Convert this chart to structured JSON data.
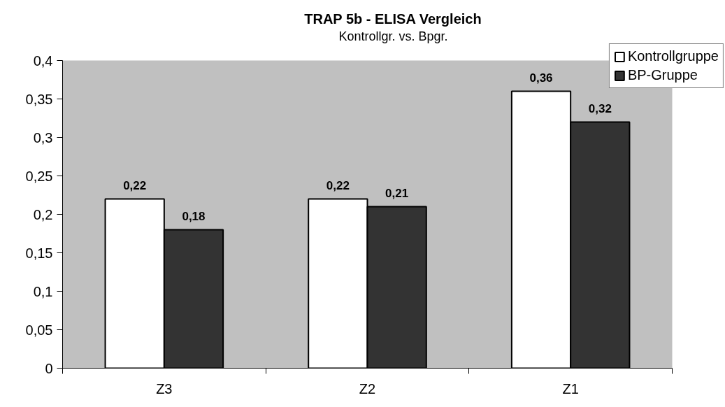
{
  "chart_data": {
    "type": "bar",
    "title": "TRAP 5b - ELISA Vergleich",
    "subtitle": "Kontrollgr. vs. Bpgr.",
    "categories": [
      "Z3",
      "Z2",
      "Z1"
    ],
    "series": [
      {
        "name": "Kontrollgruppe",
        "color": "#ffffff",
        "values": [
          0.22,
          0.22,
          0.36
        ],
        "value_labels": [
          "0,22",
          "0,22",
          "0,36"
        ]
      },
      {
        "name": "BP-Gruppe",
        "color": "#333333",
        "values": [
          0.18,
          0.21,
          0.32
        ],
        "value_labels": [
          "0,18",
          "0,21",
          "0,32"
        ]
      }
    ],
    "ylim": [
      0,
      0.4
    ],
    "yticks": [
      0,
      {
        "value": 0.05,
        "label": "0,05"
      },
      {
        "value": 0.1,
        "label": "0,1"
      },
      {
        "value": 0.15,
        "label": "0,15"
      },
      {
        "value": 0.2,
        "label": "0,2"
      },
      {
        "value": 0.25,
        "label": "0,25"
      },
      {
        "value": 0.3,
        "label": "0,3"
      },
      {
        "value": 0.35,
        "label": "0,35"
      },
      {
        "value": 0.4,
        "label": "0,4"
      }
    ],
    "grid": false,
    "legend": "top right"
  }
}
